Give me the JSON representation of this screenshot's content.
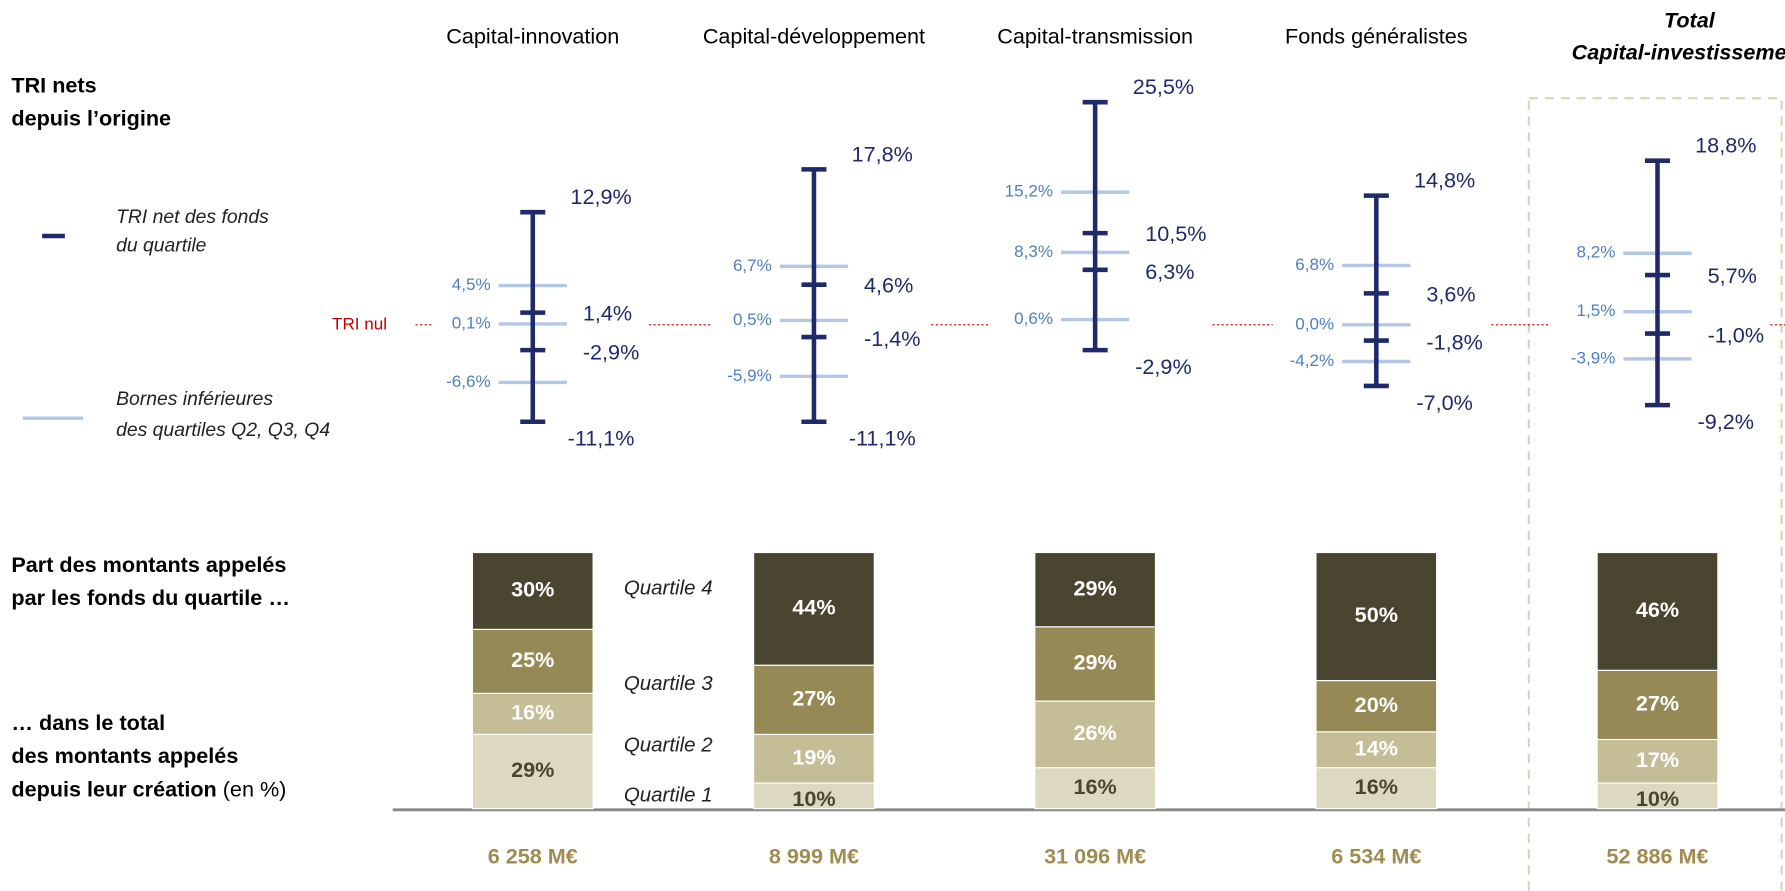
{
  "chart_data": {
    "type": "quartile-range",
    "left_texts": {
      "irr_title": [
        "TRI nets",
        "depuis l’origine"
      ],
      "share_title": [
        "Part des montants appelés",
        "par les fonds du quartile …"
      ],
      "total_title": [
        "… dans le total",
        "des montants appelés"
      ],
      "total_title_bold": "depuis leur création",
      "total_title_unit": "(en %)"
    },
    "legend": {
      "dark": [
        "TRI net des fonds",
        "du quartile"
      ],
      "light": [
        "Bornes inférieures",
        "des quartiles Q2, Q3, Q4"
      ],
      "dark_color": "#1f2a6b",
      "light_color": "#b4c7e7"
    },
    "zero_label": "TRI nul",
    "categories": [
      "Capital-innovation",
      "Capital-développement",
      "Capital-transmission",
      "Fonds généralistes",
      [
        "Total",
        "Capital-investissement"
      ]
    ],
    "irr": [
      {
        "dark": [
          12.9,
          1.4,
          -2.9,
          -11.1
        ],
        "dark_labels": [
          "12,9%",
          "1,4%",
          "-2,9%",
          "-11,1%"
        ],
        "light": [
          4.5,
          0.1,
          -6.6
        ],
        "light_labels": [
          "4,5%",
          "0,1%",
          "-6,6%"
        ]
      },
      {
        "dark": [
          17.8,
          4.6,
          -1.4,
          -11.1
        ],
        "dark_labels": [
          "17,8%",
          "4,6%",
          "-1,4%",
          "-11,1%"
        ],
        "light": [
          6.7,
          0.5,
          -5.9
        ],
        "light_labels": [
          "6,7%",
          "0,5%",
          "-5,9%"
        ]
      },
      {
        "dark": [
          25.5,
          10.5,
          6.3,
          -2.9
        ],
        "dark_labels": [
          "25,5%",
          "10,5%",
          "6,3%",
          "-2,9%"
        ],
        "light": [
          15.2,
          8.3,
          0.6
        ],
        "light_labels": [
          "15,2%",
          "8,3%",
          "0,6%"
        ]
      },
      {
        "dark": [
          14.8,
          3.6,
          -1.8,
          -7.0
        ],
        "dark_labels": [
          "14,8%",
          "3,6%",
          "-1,8%",
          "-7,0%"
        ],
        "light": [
          6.8,
          0.0,
          -4.2
        ],
        "light_labels": [
          "6,8%",
          "0,0%",
          "-4,2%"
        ]
      },
      {
        "dark": [
          18.8,
          5.7,
          -1.0,
          -9.2
        ],
        "dark_labels": [
          "18,8%",
          "5,7%",
          "-1,0%",
          "-9,2%"
        ],
        "light": [
          8.2,
          1.5,
          -3.9
        ],
        "light_labels": [
          "8,2%",
          "1,5%",
          "-3,9%"
        ]
      }
    ],
    "series": [
      {
        "name": "Quartile 1",
        "color": "#ddd8c0",
        "values": [
          29,
          10,
          16,
          16,
          10
        ],
        "value_labels": [
          "29%",
          "10%",
          "16%",
          "16%",
          "10%"
        ]
      },
      {
        "name": "Quartile 2",
        "color": "#c5bd96",
        "values": [
          16,
          19,
          26,
          14,
          17
        ],
        "value_labels": [
          "16%",
          "19%",
          "26%",
          "14%",
          "17%"
        ]
      },
      {
        "name": "Quartile 3",
        "color": "#958a55",
        "values": [
          25,
          27,
          29,
          20,
          27
        ],
        "value_labels": [
          "25%",
          "27%",
          "29%",
          "20%",
          "27%"
        ]
      },
      {
        "name": "Quartile 4",
        "color": "#4a4530",
        "values": [
          30,
          44,
          29,
          50,
          46
        ],
        "value_labels": [
          "30%",
          "44%",
          "29%",
          "50%",
          "46%"
        ]
      }
    ],
    "amounts": [
      "6 258 M€",
      "8 999 M€",
      "31 096 M€",
      "6 534 M€",
      "52 886 M€"
    ]
  }
}
